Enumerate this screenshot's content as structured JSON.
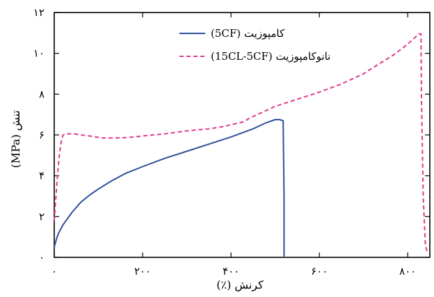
{
  "chart_data": {
    "type": "line",
    "xlabel": "کرنش (٪)",
    "ylabel": "تنش (MPa)",
    "xlim": [
      0,
      850
    ],
    "ylim": [
      0,
      12
    ],
    "x_ticks": [
      0,
      200,
      400,
      600,
      800
    ],
    "x_tick_labels": [
      "۰",
      "۲۰۰",
      "۴۰۰",
      "۶۰۰",
      "۸۰۰"
    ],
    "y_ticks": [
      0,
      2,
      4,
      6,
      8,
      10,
      12
    ],
    "y_tick_labels": [
      "۰",
      "۲",
      "۴",
      "۶",
      "۸",
      "۱۰",
      "۱۲"
    ],
    "grid": false,
    "legend_position": "top-left",
    "series": [
      {
        "name": "کامپوزیت (5CF)",
        "color": "#2e4f9c",
        "dash": "solid",
        "x": [
          0,
          5,
          10,
          20,
          40,
          60,
          80,
          100,
          130,
          160,
          200,
          250,
          300,
          350,
          400,
          450,
          480,
          500,
          510,
          518,
          520,
          520
        ],
        "y": [
          0.5,
          0.9,
          1.2,
          1.6,
          2.2,
          2.7,
          3.05,
          3.35,
          3.75,
          4.1,
          4.45,
          4.85,
          5.2,
          5.55,
          5.9,
          6.3,
          6.6,
          6.75,
          6.75,
          6.7,
          3.0,
          0
        ]
      },
      {
        "name": "نانوکامپوزیت (15CL-5CF)",
        "color": "#e0388f",
        "dash": "dashed",
        "x": [
          0,
          4,
          8,
          12,
          16,
          20,
          30,
          45,
          60,
          80,
          110,
          140,
          170,
          200,
          250,
          300,
          350,
          380,
          410,
          430,
          440,
          500,
          550,
          600,
          650,
          700,
          740,
          770,
          800,
          815,
          825,
          830,
          831,
          835,
          840,
          845
        ],
        "y": [
          1.8,
          3.0,
          4.2,
          5.1,
          5.7,
          6.0,
          6.05,
          6.05,
          6.0,
          5.95,
          5.85,
          5.85,
          5.88,
          5.95,
          6.05,
          6.2,
          6.3,
          6.4,
          6.55,
          6.65,
          6.8,
          7.4,
          7.75,
          8.1,
          8.5,
          9.0,
          9.55,
          9.95,
          10.45,
          10.75,
          10.95,
          10.95,
          8.0,
          3.0,
          0.6,
          0.2
        ]
      }
    ]
  }
}
